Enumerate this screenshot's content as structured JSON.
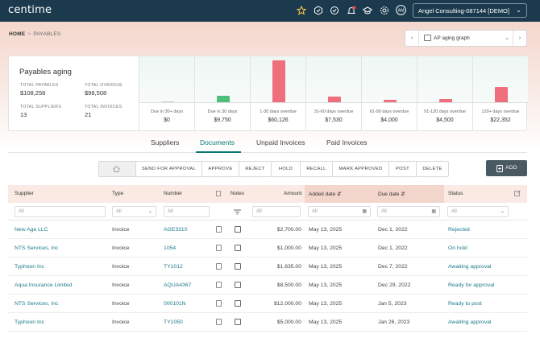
{
  "topbar": {
    "logo": "centime",
    "company": "Angel Consulting-087144 [DEMO]",
    "user_initials": "AM"
  },
  "breadcrumb": {
    "home": "HOME",
    "current": "PAYABLES"
  },
  "graph_selector": {
    "label": "AP aging graph"
  },
  "aging": {
    "title": "Payables aging",
    "total_payables_label": "TOTAL PAYABLES",
    "total_payables": "$108,258",
    "total_overdue_label": "TOTAL OVERDUE",
    "total_overdue": "$98,508",
    "total_suppliers_label": "TOTAL SUPPLIERS",
    "total_suppliers": "13",
    "total_invoices_label": "TOTAL INVOICES",
    "total_invoices": "21"
  },
  "chart_data": {
    "type": "bar",
    "title": "AP aging graph",
    "categories": [
      "Due in 30+ days",
      "Due in 30 days",
      "1-30 days overdue",
      "31-60 days overdue",
      "61-90 days overdue",
      "91-120 days overdue",
      "120+ days overdue"
    ],
    "values": [
      0,
      9750,
      60126,
      7530,
      4000,
      4500,
      22352
    ],
    "value_labels": [
      "$0",
      "$9,750",
      "$60,126",
      "$7,530",
      "$4,000",
      "$4,500",
      "$22,352"
    ],
    "colors": [
      "#cfcfcf",
      "#4cc07a",
      "#ef6f7c",
      "#ef6f7c",
      "#ef6f7c",
      "#ef6f7c",
      "#ef6f7c"
    ],
    "ylim": [
      0,
      60126
    ]
  },
  "tabs": [
    "Suppliers",
    "Documents",
    "Unpaid Invoices",
    "Paid Invoices"
  ],
  "active_tab": "Documents",
  "toolbar": {
    "send_for_approval": "SEND FOR APPROVAL",
    "approve": "APPROVE",
    "reject": "REJECT",
    "hold": "HOLD",
    "recall": "RECALL",
    "mark_approved": "MARK APPROVED",
    "post": "POST",
    "delete": "DELETE",
    "add": "ADD"
  },
  "table": {
    "headers": {
      "supplier": "Supplier",
      "type": "Type",
      "number": "Number",
      "notes": "Notes",
      "amount": "Amount",
      "added_date": "Added date",
      "due_date": "Due date",
      "status": "Status"
    },
    "filters": {
      "supplier": "All",
      "type": "All",
      "number": "All",
      "amount": "All",
      "added_date": "All",
      "due_date": "All",
      "status": "All"
    },
    "rows": [
      {
        "supplier": "New Age LLC",
        "type": "Invoice",
        "number": "AGE3310",
        "amount": "$2,700.00",
        "added": "May 13, 2025",
        "due": "Dec 1, 2022",
        "status": "Rejected"
      },
      {
        "supplier": "NTS Services, Inc",
        "type": "Invoice",
        "number": "1054",
        "amount": "$1,000.00",
        "added": "May 13, 2025",
        "due": "Dec 1, 2022",
        "status": "On hold"
      },
      {
        "supplier": "Typhoon Inc",
        "type": "Invoice",
        "number": "TY1012",
        "amount": "$1,635.00",
        "added": "May 13, 2025",
        "due": "Dec 7, 2022",
        "status": "Awaiting approval"
      },
      {
        "supplier": "Aqua Insurance Limited",
        "type": "Invoice",
        "number": "AQUA4367",
        "amount": "$8,500.00",
        "added": "May 13, 2025",
        "due": "Dec 29, 2022",
        "status": "Ready for approval"
      },
      {
        "supplier": "NTS Services, Inc",
        "type": "Invoice",
        "number": "000101N",
        "amount": "$12,000.00",
        "added": "May 13, 2025",
        "due": "Jan 5, 2023",
        "status": "Ready to post"
      },
      {
        "supplier": "Typhoon Inc",
        "type": "Invoice",
        "number": "TY1050",
        "amount": "$5,000.00",
        "added": "May 13, 2025",
        "due": "Jan 26, 2023",
        "status": "Awaiting approval"
      }
    ]
  }
}
